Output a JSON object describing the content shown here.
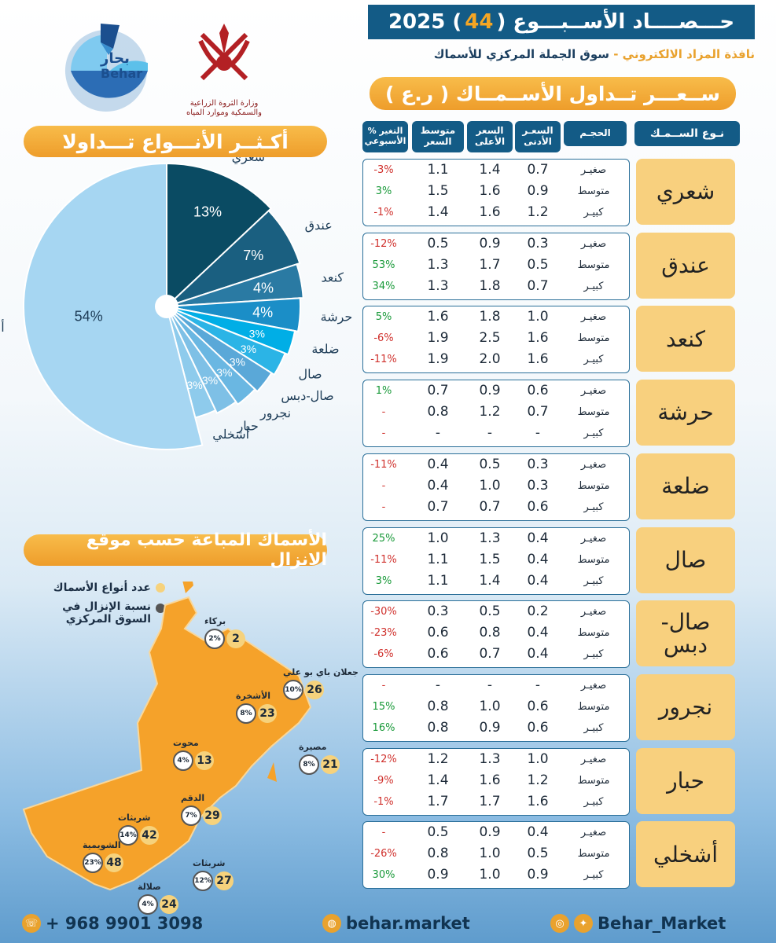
{
  "header": {
    "title_prefix": "حـــصــــاد الأســبـــوع (",
    "week": "44",
    "title_suffix": ") 2025",
    "subtitle_gold": "نافذة المزاد الالكتروني -",
    "subtitle_main": "سوق الجملة المركزي للأسماك",
    "price_heading": "ســعـــر تــداول الأســمــاك ( ر.ع )"
  },
  "logos": {
    "ministry_text": "وزارة الثروة الزراعية والسمكية وموارد المياه",
    "brand_ar": "بحار",
    "brand_en": "Behar"
  },
  "table": {
    "headers": {
      "fish": "نـوع الســمـك",
      "size": "الحجـم",
      "min": "السعـر الأدنى",
      "max": "السعر الأعلى",
      "avg": "متوسط السعر",
      "change": "% التغير الأسبوعي"
    },
    "groups": [
      {
        "fish": "شعري",
        "rows": [
          {
            "size": "صغيـر",
            "min": "0.7",
            "max": "1.4",
            "avg": "1.1",
            "change": "-3%",
            "dir": "down"
          },
          {
            "size": "متوسط",
            "min": "0.9",
            "max": "1.6",
            "avg": "1.5",
            "change": "3%",
            "dir": "up"
          },
          {
            "size": "كبيـر",
            "min": "1.2",
            "max": "1.6",
            "avg": "1.4",
            "change": "-1%",
            "dir": "down"
          }
        ]
      },
      {
        "fish": "عندق",
        "rows": [
          {
            "size": "صغيـر",
            "min": "0.3",
            "max": "0.9",
            "avg": "0.5",
            "change": "-12%",
            "dir": "down"
          },
          {
            "size": "متوسط",
            "min": "0.5",
            "max": "1.7",
            "avg": "1.3",
            "change": "53%",
            "dir": "up"
          },
          {
            "size": "كبيـر",
            "min": "0.7",
            "max": "1.8",
            "avg": "1.3",
            "change": "34%",
            "dir": "up"
          }
        ]
      },
      {
        "fish": "كنعد",
        "rows": [
          {
            "size": "صغيـر",
            "min": "1.0",
            "max": "1.8",
            "avg": "1.6",
            "change": "5%",
            "dir": "up"
          },
          {
            "size": "متوسط",
            "min": "1.6",
            "max": "2.5",
            "avg": "1.9",
            "change": "-6%",
            "dir": "down"
          },
          {
            "size": "كبيـر",
            "min": "1.6",
            "max": "2.0",
            "avg": "1.9",
            "change": "-11%",
            "dir": "down"
          }
        ]
      },
      {
        "fish": "حرشة",
        "rows": [
          {
            "size": "صغيـر",
            "min": "0.6",
            "max": "0.9",
            "avg": "0.7",
            "change": "1%",
            "dir": "up"
          },
          {
            "size": "متوسط",
            "min": "0.7",
            "max": "1.2",
            "avg": "0.8",
            "change": "-",
            "dir": "down"
          },
          {
            "size": "كبيـر",
            "min": "-",
            "max": "-",
            "avg": "-",
            "change": "-",
            "dir": "down"
          }
        ]
      },
      {
        "fish": "ضلعة",
        "rows": [
          {
            "size": "صغيـر",
            "min": "0.3",
            "max": "0.5",
            "avg": "0.4",
            "change": "-11%",
            "dir": "down"
          },
          {
            "size": "متوسط",
            "min": "0.3",
            "max": "1.0",
            "avg": "0.4",
            "change": "-",
            "dir": "down"
          },
          {
            "size": "كبيـر",
            "min": "0.6",
            "max": "0.7",
            "avg": "0.7",
            "change": "-",
            "dir": "down"
          }
        ]
      },
      {
        "fish": "صال",
        "rows": [
          {
            "size": "صغيـر",
            "min": "0.4",
            "max": "1.3",
            "avg": "1.0",
            "change": "25%",
            "dir": "up"
          },
          {
            "size": "متوسط",
            "min": "0.4",
            "max": "1.5",
            "avg": "1.1",
            "change": "-11%",
            "dir": "down"
          },
          {
            "size": "كبيـر",
            "min": "0.4",
            "max": "1.4",
            "avg": "1.1",
            "change": "3%",
            "dir": "up"
          }
        ]
      },
      {
        "fish": "صال- دبس",
        "rows": [
          {
            "size": "صغيـر",
            "min": "0.2",
            "max": "0.5",
            "avg": "0.3",
            "change": "-30%",
            "dir": "down"
          },
          {
            "size": "متوسط",
            "min": "0.4",
            "max": "0.8",
            "avg": "0.6",
            "change": "-23%",
            "dir": "down"
          },
          {
            "size": "كبيـر",
            "min": "0.4",
            "max": "0.7",
            "avg": "0.6",
            "change": "-6%",
            "dir": "down"
          }
        ]
      },
      {
        "fish": "نجرور",
        "rows": [
          {
            "size": "صغيـر",
            "min": "-",
            "max": "-",
            "avg": "-",
            "change": "-",
            "dir": "down"
          },
          {
            "size": "متوسط",
            "min": "0.6",
            "max": "1.0",
            "avg": "0.8",
            "change": "15%",
            "dir": "up"
          },
          {
            "size": "كبيـر",
            "min": "0.6",
            "max": "0.9",
            "avg": "0.8",
            "change": "16%",
            "dir": "up"
          }
        ]
      },
      {
        "fish": "حبار",
        "rows": [
          {
            "size": "صغيـر",
            "min": "1.0",
            "max": "1.3",
            "avg": "1.2",
            "change": "-12%",
            "dir": "down"
          },
          {
            "size": "متوسط",
            "min": "1.2",
            "max": "1.6",
            "avg": "1.4",
            "change": "-9%",
            "dir": "down"
          },
          {
            "size": "كبيـر",
            "min": "1.6",
            "max": "1.7",
            "avg": "1.7",
            "change": "-1%",
            "dir": "down"
          }
        ]
      },
      {
        "fish": "أشخلي",
        "rows": [
          {
            "size": "صغيـر",
            "min": "0.4",
            "max": "0.9",
            "avg": "0.5",
            "change": "-",
            "dir": "down"
          },
          {
            "size": "متوسط",
            "min": "0.5",
            "max": "1.0",
            "avg": "0.8",
            "change": "-26%",
            "dir": "down"
          },
          {
            "size": "كبيـر",
            "min": "0.9",
            "max": "1.0",
            "avg": "0.9",
            "change": "30%",
            "dir": "up"
          }
        ]
      }
    ],
    "colors": {
      "up": "#1a9a3a",
      "down": "#d0312d"
    }
  },
  "pie": {
    "heading": "أكـثــر الأنـــواع تـــداولا"
  },
  "chart_data": {
    "type": "pie",
    "title": "أكـثــر الأنـــواع تـــداولا",
    "slices": [
      {
        "label": "شعري",
        "value": 13,
        "text": "13%",
        "color": "#0a4b63"
      },
      {
        "label": "عندق",
        "value": 7,
        "text": "7%",
        "color": "#1a5f80"
      },
      {
        "label": "كنعد",
        "value": 4,
        "text": "4%",
        "color": "#2a7aa3"
      },
      {
        "label": "حرشة",
        "value": 4,
        "text": "4%",
        "color": "#1b8ec7"
      },
      {
        "label": "ضلعة",
        "value": 3,
        "text": "3%",
        "color": "#00aee6"
      },
      {
        "label": "صال",
        "value": 3,
        "text": "3%",
        "color": "#2bb4e6"
      },
      {
        "label": "صال-دبس",
        "value": 3,
        "text": "3%",
        "color": "#5aa8d8"
      },
      {
        "label": "نجرور",
        "value": 3,
        "text": "3%",
        "color": "#6ab7e2"
      },
      {
        "label": "حبار",
        "value": 3,
        "text": "3%",
        "color": "#7ec0e6"
      },
      {
        "label": "أشخلي",
        "value": 3,
        "text": "3%",
        "color": "#8ecbec"
      },
      {
        "label": "أخرى",
        "value": 54,
        "text": "54%",
        "color": "#a6d6f2"
      }
    ]
  },
  "map": {
    "heading": "الأسماك المباعة حسب موقع الانزال",
    "legend_count": "عدد أنواع الأسماك",
    "legend_share": "نسبة الإنزال في السوق المركزي",
    "sites": [
      {
        "name": "بركاء",
        "share": "2%",
        "count": "2"
      },
      {
        "name": "جعلان باي بو علي",
        "share": "10%",
        "count": "26"
      },
      {
        "name": "الأشخرة",
        "share": "8%",
        "count": "23"
      },
      {
        "name": "محوت",
        "share": "4%",
        "count": "13"
      },
      {
        "name": "مصيرة",
        "share": "8%",
        "count": "21"
      },
      {
        "name": "الدقم",
        "share": "7%",
        "count": "29"
      },
      {
        "name": "شربثات",
        "share": "14%",
        "count": "42"
      },
      {
        "name": "الشويمية",
        "share": "23%",
        "count": "48"
      },
      {
        "name": "شربثات",
        "share": "12%",
        "count": "27"
      },
      {
        "name": "صلالة",
        "share": "4%",
        "count": "24"
      }
    ]
  },
  "footer": {
    "phone": "+ 968 9901 3098",
    "site": "behar.market",
    "social": "Behar_Market"
  }
}
